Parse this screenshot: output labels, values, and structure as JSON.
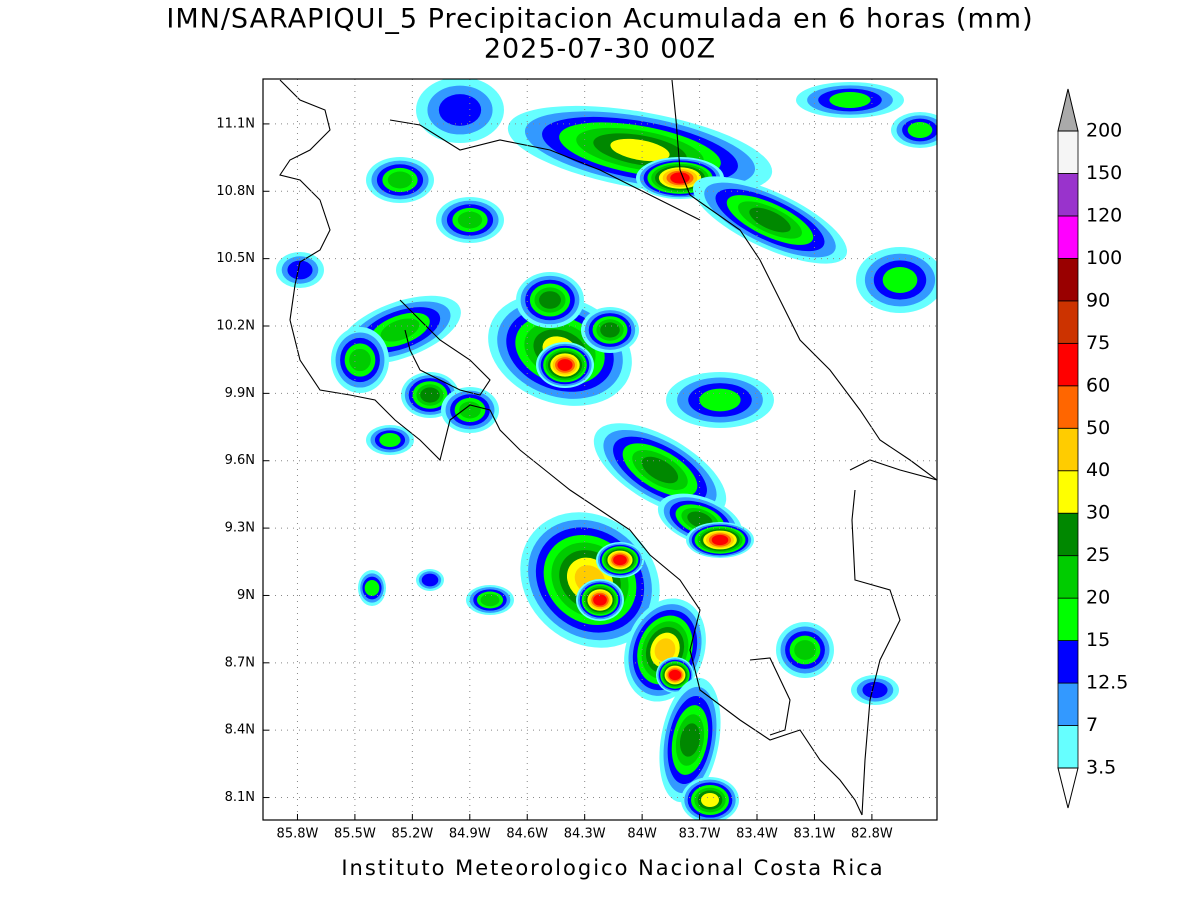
{
  "title": "IMN/SARAPIQUI_5 Precipitacion Acumulada en 6 horas (mm)",
  "subtitle": "2025-07-30 00Z",
  "footer": "Instituto Meteorologico Nacional Costa Rica",
  "map": {
    "lon_range": [
      -85.98,
      -82.46
    ],
    "lat_range": [
      8.0,
      11.3
    ],
    "grid": true,
    "lon_ticks": [
      {
        "value": -85.8,
        "label": "85.8W"
      },
      {
        "value": -85.5,
        "label": "85.5W"
      },
      {
        "value": -85.2,
        "label": "85.2W"
      },
      {
        "value": -84.9,
        "label": "84.9W"
      },
      {
        "value": -84.6,
        "label": "84.6W"
      },
      {
        "value": -84.3,
        "label": "84.3W"
      },
      {
        "value": -84.0,
        "label": "84W"
      },
      {
        "value": -83.7,
        "label": "83.7W"
      },
      {
        "value": -83.4,
        "label": "83.4W"
      },
      {
        "value": -83.1,
        "label": "83.1W"
      },
      {
        "value": -82.8,
        "label": "82.8W"
      }
    ],
    "lat_ticks": [
      {
        "value": 11.1,
        "label": "11.1N"
      },
      {
        "value": 10.8,
        "label": "10.8N"
      },
      {
        "value": 10.5,
        "label": "10.5N"
      },
      {
        "value": 10.2,
        "label": "10.2N"
      },
      {
        "value": 9.9,
        "label": "9.9N"
      },
      {
        "value": 9.6,
        "label": "9.6N"
      },
      {
        "value": 9.3,
        "label": "9.3N"
      },
      {
        "value": 9.0,
        "label": "9N"
      },
      {
        "value": 8.7,
        "label": "8.7N"
      },
      {
        "value": 8.4,
        "label": "8.4N"
      },
      {
        "value": 8.1,
        "label": "8.1N"
      }
    ]
  },
  "colorbar": {
    "levels": [
      3.5,
      7,
      12.5,
      15,
      20,
      25,
      30,
      40,
      50,
      60,
      75,
      90,
      100,
      120,
      150,
      200
    ],
    "colors": [
      "#ffffff",
      "#66ffff",
      "#3399ff",
      "#0000ff",
      "#00ff00",
      "#00cc00",
      "#008800",
      "#ffff00",
      "#ffcc00",
      "#ff6600",
      "#ff0000",
      "#cc3300",
      "#990000",
      "#ff00ff",
      "#9933cc",
      "#f5f5f5",
      "#aaaaaa"
    ]
  }
}
